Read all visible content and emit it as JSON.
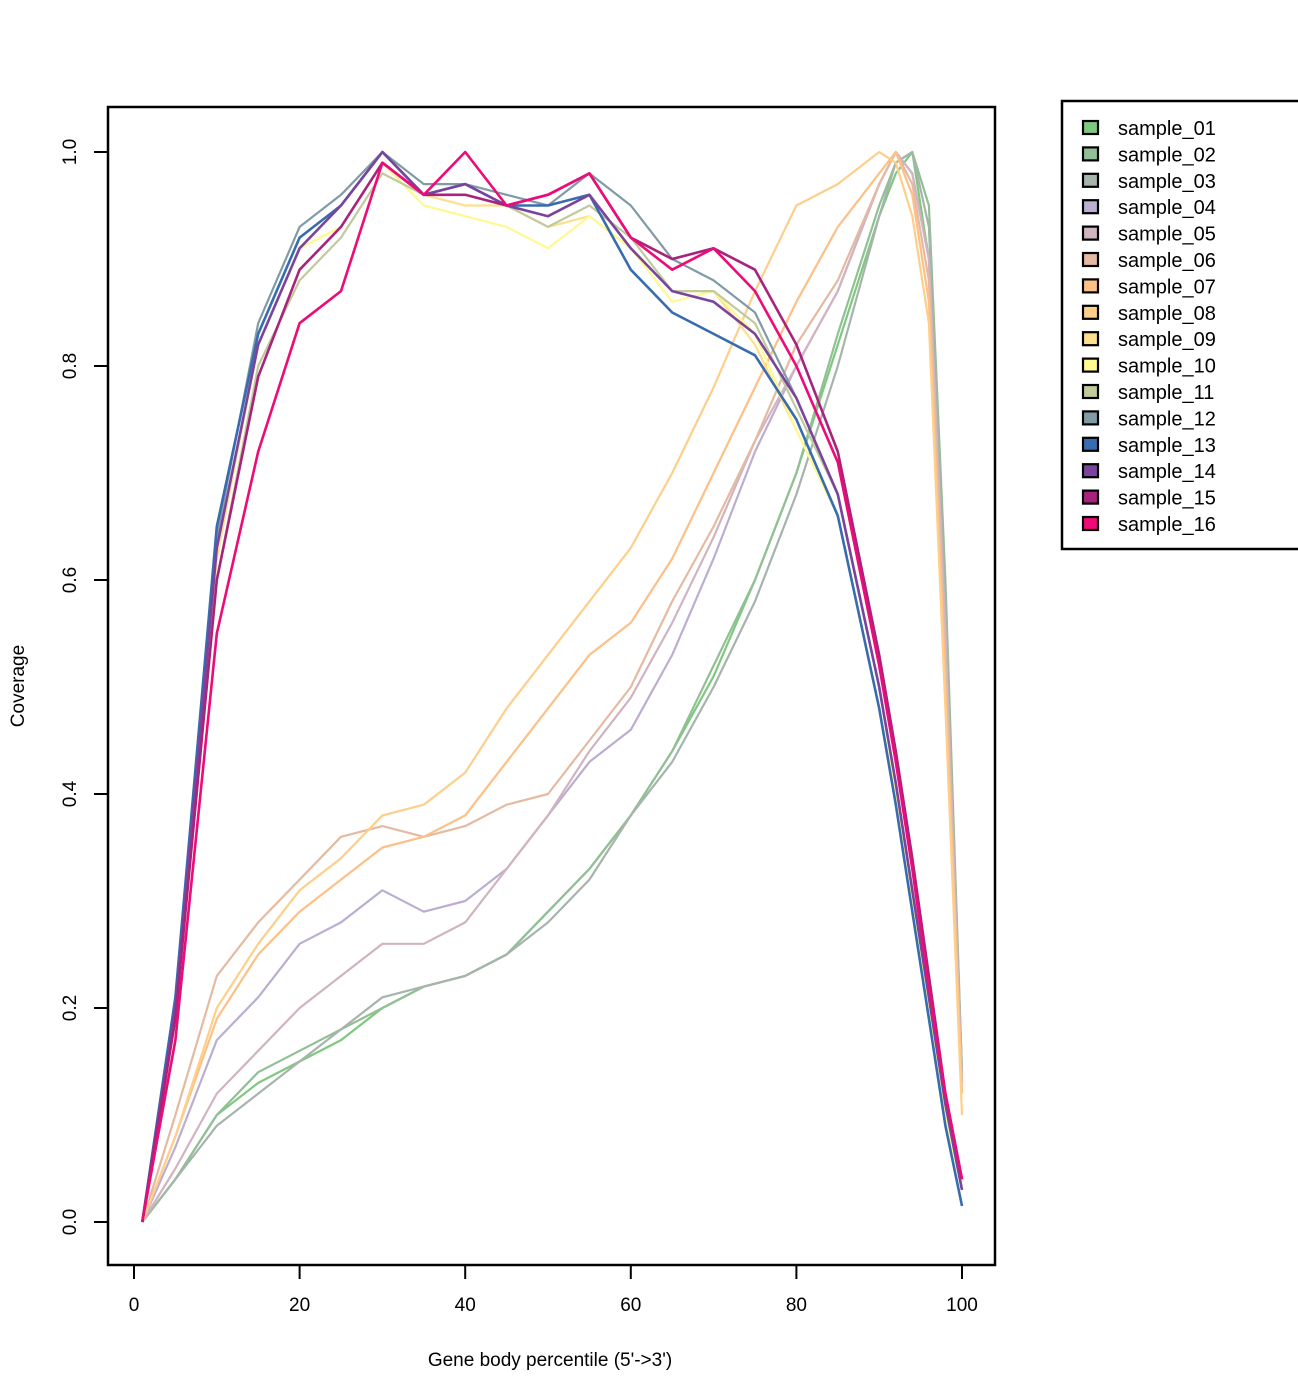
{
  "chart_data": {
    "type": "line",
    "title": "",
    "xlabel": "Gene body percentile (5'->3')",
    "ylabel": "Coverage",
    "xlim": [
      0,
      100
    ],
    "ylim": [
      0.0,
      1.0
    ],
    "xticks": [
      0,
      20,
      40,
      60,
      80,
      100
    ],
    "xtick_labels": [
      "0",
      "20",
      "40",
      "60",
      "80",
      "100"
    ],
    "yticks": [
      0.0,
      0.2,
      0.4,
      0.6,
      0.8,
      1.0
    ],
    "ytick_labels": [
      "0.0",
      "0.2",
      "0.4",
      "0.6",
      "0.8",
      "1.0"
    ],
    "grid": false,
    "legend_position": "right-outside-top",
    "x": [
      1,
      5,
      10,
      15,
      20,
      25,
      30,
      35,
      40,
      45,
      50,
      55,
      60,
      65,
      70,
      75,
      80,
      85,
      90,
      92,
      94,
      96,
      98,
      100
    ],
    "series": [
      {
        "name": "sample_01",
        "color": "#7FC97F",
        "values": [
          0.0,
          0.04,
          0.1,
          0.13,
          0.15,
          0.17,
          0.2,
          0.22,
          0.23,
          0.25,
          0.29,
          0.33,
          0.38,
          0.44,
          0.51,
          0.6,
          0.7,
          0.82,
          0.94,
          0.98,
          1.0,
          0.9,
          0.55,
          0.14
        ]
      },
      {
        "name": "sample_02",
        "color": "#92BF95",
        "values": [
          0.0,
          0.04,
          0.1,
          0.14,
          0.16,
          0.18,
          0.2,
          0.22,
          0.23,
          0.25,
          0.29,
          0.33,
          0.38,
          0.44,
          0.52,
          0.6,
          0.7,
          0.83,
          0.95,
          0.99,
          1.0,
          0.95,
          0.6,
          0.14
        ]
      },
      {
        "name": "sample_03",
        "color": "#A6B4AC",
        "values": [
          0.0,
          0.04,
          0.09,
          0.12,
          0.15,
          0.18,
          0.21,
          0.22,
          0.23,
          0.25,
          0.28,
          0.32,
          0.38,
          0.43,
          0.5,
          0.58,
          0.68,
          0.8,
          0.94,
          0.99,
          1.0,
          0.93,
          0.58,
          0.14
        ]
      },
      {
        "name": "sample_04",
        "color": "#BBAED0",
        "values": [
          0.0,
          0.07,
          0.17,
          0.21,
          0.26,
          0.28,
          0.31,
          0.29,
          0.3,
          0.33,
          0.38,
          0.43,
          0.46,
          0.53,
          0.62,
          0.72,
          0.8,
          0.87,
          0.97,
          1.0,
          0.98,
          0.9,
          0.55,
          0.13
        ]
      },
      {
        "name": "sample_05",
        "color": "#D0B4C0",
        "values": [
          0.0,
          0.05,
          0.12,
          0.16,
          0.2,
          0.23,
          0.26,
          0.26,
          0.28,
          0.33,
          0.38,
          0.44,
          0.49,
          0.56,
          0.64,
          0.73,
          0.8,
          0.87,
          0.97,
          1.0,
          0.98,
          0.9,
          0.55,
          0.13
        ]
      },
      {
        "name": "sample_06",
        "color": "#E4BAA2",
        "values": [
          0.0,
          0.1,
          0.23,
          0.28,
          0.32,
          0.36,
          0.37,
          0.36,
          0.37,
          0.39,
          0.4,
          0.45,
          0.5,
          0.58,
          0.65,
          0.73,
          0.82,
          0.88,
          0.97,
          1.0,
          0.97,
          0.88,
          0.52,
          0.12
        ]
      },
      {
        "name": "sample_07",
        "color": "#FDC086",
        "values": [
          0.0,
          0.08,
          0.19,
          0.25,
          0.29,
          0.32,
          0.35,
          0.36,
          0.38,
          0.43,
          0.48,
          0.53,
          0.56,
          0.62,
          0.7,
          0.78,
          0.86,
          0.93,
          0.98,
          1.0,
          0.96,
          0.86,
          0.5,
          0.12
        ]
      },
      {
        "name": "sample_08",
        "color": "#FECF8A",
        "values": [
          0.0,
          0.08,
          0.2,
          0.26,
          0.31,
          0.34,
          0.38,
          0.39,
          0.42,
          0.48,
          0.53,
          0.58,
          0.63,
          0.7,
          0.78,
          0.87,
          0.95,
          0.97,
          1.0,
          0.99,
          0.94,
          0.84,
          0.48,
          0.1
        ]
      },
      {
        "name": "sample_09",
        "color": "#FEDF8E",
        "values": [
          0.0,
          0.2,
          0.62,
          0.82,
          0.91,
          0.93,
          0.99,
          0.96,
          0.95,
          0.95,
          0.93,
          0.94,
          0.91,
          0.87,
          0.87,
          0.82,
          0.74,
          0.66,
          0.48,
          0.4,
          0.3,
          0.2,
          0.1,
          0.03
        ]
      },
      {
        "name": "sample_10",
        "color": "#FFF991",
        "values": [
          0.0,
          0.2,
          0.63,
          0.82,
          0.91,
          0.93,
          0.99,
          0.95,
          0.94,
          0.93,
          0.91,
          0.94,
          0.91,
          0.86,
          0.87,
          0.83,
          0.74,
          0.66,
          0.48,
          0.4,
          0.3,
          0.2,
          0.1,
          0.03
        ]
      },
      {
        "name": "sample_11",
        "color": "#C0CA9C",
        "values": [
          0.0,
          0.19,
          0.6,
          0.8,
          0.88,
          0.92,
          0.98,
          0.96,
          0.96,
          0.95,
          0.93,
          0.95,
          0.92,
          0.87,
          0.87,
          0.84,
          0.76,
          0.68,
          0.5,
          0.41,
          0.31,
          0.21,
          0.11,
          0.03
        ]
      },
      {
        "name": "sample_12",
        "color": "#819BA6",
        "values": [
          0.0,
          0.21,
          0.64,
          0.84,
          0.93,
          0.96,
          1.0,
          0.97,
          0.97,
          0.96,
          0.95,
          0.98,
          0.95,
          0.9,
          0.88,
          0.85,
          0.77,
          0.68,
          0.5,
          0.41,
          0.31,
          0.21,
          0.11,
          0.03
        ]
      },
      {
        "name": "sample_13",
        "color": "#386CB0",
        "values": [
          0.0,
          0.21,
          0.65,
          0.83,
          0.92,
          0.95,
          1.0,
          0.96,
          0.97,
          0.95,
          0.95,
          0.96,
          0.89,
          0.85,
          0.83,
          0.81,
          0.75,
          0.66,
          0.48,
          0.39,
          0.29,
          0.19,
          0.09,
          0.015
        ]
      },
      {
        "name": "sample_14",
        "color": "#7A449C",
        "values": [
          0.0,
          0.2,
          0.63,
          0.82,
          0.91,
          0.95,
          1.0,
          0.96,
          0.97,
          0.95,
          0.94,
          0.96,
          0.91,
          0.87,
          0.86,
          0.83,
          0.77,
          0.68,
          0.5,
          0.41,
          0.31,
          0.21,
          0.11,
          0.03
        ]
      },
      {
        "name": "sample_15",
        "color": "#A8237C",
        "values": [
          0.0,
          0.19,
          0.6,
          0.79,
          0.89,
          0.93,
          0.99,
          0.96,
          0.96,
          0.95,
          0.96,
          0.98,
          0.92,
          0.9,
          0.91,
          0.89,
          0.82,
          0.72,
          0.53,
          0.44,
          0.34,
          0.23,
          0.12,
          0.04
        ]
      },
      {
        "name": "sample_16",
        "color": "#EE0A77",
        "values": [
          0.0,
          0.17,
          0.55,
          0.72,
          0.84,
          0.87,
          0.99,
          0.96,
          1.0,
          0.95,
          0.96,
          0.98,
          0.92,
          0.89,
          0.91,
          0.87,
          0.8,
          0.71,
          0.52,
          0.43,
          0.33,
          0.22,
          0.12,
          0.04
        ]
      }
    ]
  },
  "legend": {
    "items": [
      {
        "label": "sample_01",
        "color": "#7FC97F"
      },
      {
        "label": "sample_02",
        "color": "#92BF95"
      },
      {
        "label": "sample_03",
        "color": "#A6B4AC"
      },
      {
        "label": "sample_04",
        "color": "#BBAED0"
      },
      {
        "label": "sample_05",
        "color": "#D0B4C0"
      },
      {
        "label": "sample_06",
        "color": "#E4BAA2"
      },
      {
        "label": "sample_07",
        "color": "#FDC086"
      },
      {
        "label": "sample_08",
        "color": "#FECF8A"
      },
      {
        "label": "sample_09",
        "color": "#FEDF8E"
      },
      {
        "label": "sample_10",
        "color": "#FFF991"
      },
      {
        "label": "sample_11",
        "color": "#C0CA9C"
      },
      {
        "label": "sample_12",
        "color": "#819BA6"
      },
      {
        "label": "sample_13",
        "color": "#386CB0"
      },
      {
        "label": "sample_14",
        "color": "#7A449C"
      },
      {
        "label": "sample_15",
        "color": "#A8237C"
      },
      {
        "label": "sample_16",
        "color": "#EE0A77"
      }
    ]
  }
}
